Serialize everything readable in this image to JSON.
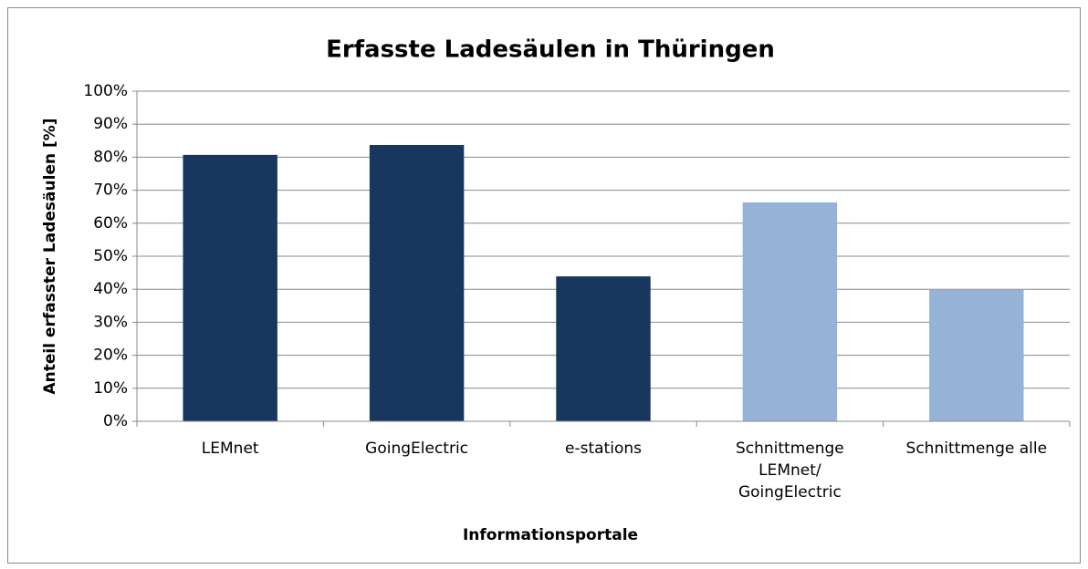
{
  "chart_data": {
    "type": "bar",
    "title": "Erfasste Ladesäulen in Thüringen",
    "x_label": "Informationsportale",
    "y_label": "Anteil erfasster Ladesäulen [%]",
    "categories": [
      "LEMnet",
      "GoingElectric",
      "e-stations",
      "Schnittmenge\nLEMnet/\nGoingElectric",
      "Schnittmenge alle"
    ],
    "values": [
      80.7,
      83.7,
      43.9,
      66.3,
      39.8
    ],
    "colors": [
      "#17375e",
      "#17375e",
      "#17375e",
      "#95b3d7",
      "#95b3d7"
    ],
    "ylim": [
      0,
      100
    ],
    "yticks": [
      {
        "value": 0,
        "label": "0%"
      },
      {
        "value": 10,
        "label": "10%"
      },
      {
        "value": 20,
        "label": "20%"
      },
      {
        "value": 30,
        "label": "30%"
      },
      {
        "value": 40,
        "label": "40%"
      },
      {
        "value": 50,
        "label": "50%"
      },
      {
        "value": 60,
        "label": "60%"
      },
      {
        "value": 70,
        "label": "70%"
      },
      {
        "value": 80,
        "label": "80%"
      },
      {
        "value": 90,
        "label": "90%"
      },
      {
        "value": 100,
        "label": "100%"
      }
    ],
    "grid": true
  }
}
